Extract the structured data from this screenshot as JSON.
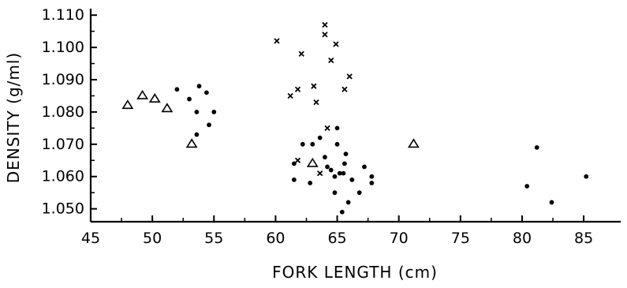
{
  "chart_data": {
    "type": "scatter",
    "title": "",
    "xlabel": "FORK LENGTH (cm)",
    "ylabel": "DENSITY (g/ml)",
    "xlim": [
      45,
      88
    ],
    "ylim": [
      1.046,
      1.112
    ],
    "x_ticks": [
      45,
      50,
      55,
      60,
      65,
      70,
      75,
      80,
      85
    ],
    "x_tick_labels": [
      "45",
      "50",
      "55",
      "60",
      "65",
      "70",
      "75",
      "80",
      "85"
    ],
    "y_ticks": [
      1.05,
      1.06,
      1.07,
      1.08,
      1.09,
      1.1,
      1.11
    ],
    "y_tick_labels": [
      "1.050",
      "1.060",
      "1.070",
      "1.080",
      "1.090",
      "1.100",
      "1.110"
    ],
    "grid": false,
    "legend": "none",
    "series": [
      {
        "marker": "triangle",
        "points": [
          [
            48.0,
            1.082
          ],
          [
            49.2,
            1.085
          ],
          [
            50.2,
            1.084
          ],
          [
            51.2,
            1.081
          ],
          [
            53.2,
            1.07
          ],
          [
            63.0,
            1.064
          ],
          [
            71.2,
            1.07
          ]
        ]
      },
      {
        "marker": "dot",
        "points": [
          [
            52.0,
            1.087
          ],
          [
            53.0,
            1.084
          ],
          [
            53.6,
            1.073
          ],
          [
            53.6,
            1.08
          ],
          [
            53.8,
            1.088
          ],
          [
            54.4,
            1.086
          ],
          [
            54.6,
            1.076
          ],
          [
            55.0,
            1.08
          ],
          [
            61.5,
            1.064
          ],
          [
            61.5,
            1.059
          ],
          [
            62.2,
            1.07
          ],
          [
            62.8,
            1.058
          ],
          [
            63.0,
            1.07
          ],
          [
            63.6,
            1.072
          ],
          [
            64.0,
            1.066
          ],
          [
            64.2,
            1.063
          ],
          [
            64.5,
            1.062
          ],
          [
            64.8,
            1.06
          ],
          [
            64.8,
            1.055
          ],
          [
            65.0,
            1.075
          ],
          [
            65.0,
            1.07
          ],
          [
            65.2,
            1.061
          ],
          [
            65.5,
            1.061
          ],
          [
            65.7,
            1.067
          ],
          [
            65.4,
            1.049
          ],
          [
            65.6,
            1.064
          ],
          [
            65.9,
            1.052
          ],
          [
            66.2,
            1.059
          ],
          [
            66.8,
            1.055
          ],
          [
            67.2,
            1.063
          ],
          [
            67.8,
            1.058
          ],
          [
            67.8,
            1.06
          ],
          [
            80.4,
            1.057
          ],
          [
            81.2,
            1.069
          ],
          [
            82.4,
            1.052
          ],
          [
            85.2,
            1.06
          ]
        ]
      },
      {
        "marker": "cross",
        "points": [
          [
            60.1,
            1.102
          ],
          [
            61.2,
            1.085
          ],
          [
            61.8,
            1.087
          ],
          [
            61.8,
            1.065
          ],
          [
            62.1,
            1.098
          ],
          [
            63.1,
            1.088
          ],
          [
            63.3,
            1.083
          ],
          [
            63.6,
            1.061
          ],
          [
            64.0,
            1.107
          ],
          [
            64.0,
            1.104
          ],
          [
            64.2,
            1.075
          ],
          [
            64.5,
            1.096
          ],
          [
            64.9,
            1.101
          ],
          [
            65.6,
            1.087
          ],
          [
            66.0,
            1.091
          ]
        ]
      }
    ]
  }
}
